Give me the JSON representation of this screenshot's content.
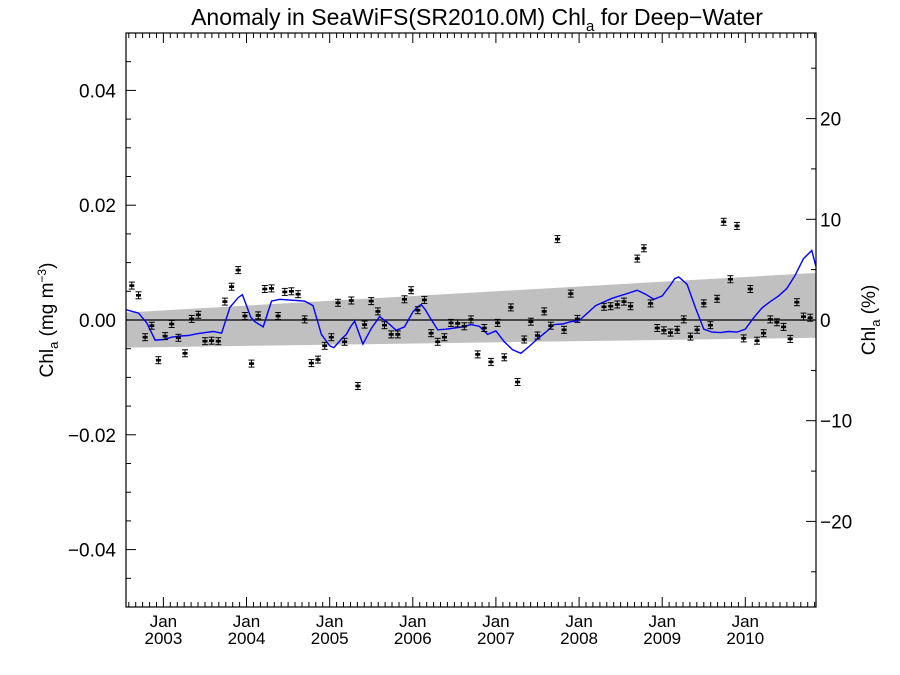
{
  "chart_data": {
    "type": "scatter",
    "title": {
      "main": "Anomaly in SeaWiFS(SR2010.0M) Chl",
      "sub": "a",
      "tail": " for Deep−Water"
    },
    "ylabel_left": {
      "main": "Chl",
      "sub": "a",
      "mid": " (mg m",
      "sup": "−3",
      "end": ")"
    },
    "ylabel_right": {
      "main": "Chl",
      "sub": "a",
      "end": " (%)"
    },
    "xlim": [
      2002.55,
      2010.85
    ],
    "ylim": [
      -0.05,
      0.05
    ],
    "ylim_right": [
      -28.5,
      28.5
    ],
    "y_ticks": [
      {
        "value": 0.04,
        "label": "0.04"
      },
      {
        "value": 0.02,
        "label": "0.02"
      },
      {
        "value": 0.0,
        "label": "0.00"
      },
      {
        "value": -0.02,
        "label": "−0.02"
      },
      {
        "value": -0.04,
        "label": "−0.04"
      }
    ],
    "y2_ticks": [
      {
        "value": 20,
        "label": "20"
      },
      {
        "value": 10,
        "label": "10"
      },
      {
        "value": 0,
        "label": "0"
      },
      {
        "value": -10,
        "label": "−10"
      },
      {
        "value": -20,
        "label": "−20"
      }
    ],
    "x_ticks": [
      {
        "value": 2003.0,
        "month": "Jan",
        "year": "2003"
      },
      {
        "value": 2004.0,
        "month": "Jan",
        "year": "2004"
      },
      {
        "value": 2005.0,
        "month": "Jan",
        "year": "2005"
      },
      {
        "value": 2006.0,
        "month": "Jan",
        "year": "2006"
      },
      {
        "value": 2007.0,
        "month": "Jan",
        "year": "2007"
      },
      {
        "value": 2008.0,
        "month": "Jan",
        "year": "2008"
      },
      {
        "value": 2009.0,
        "month": "Jan",
        "year": "2009"
      },
      {
        "value": 2010.0,
        "month": "Jan",
        "year": "2010"
      }
    ],
    "trend_band": {
      "x": [
        2002.55,
        2010.85
      ],
      "lower": [
        -0.0048,
        -0.0031
      ],
      "upper": [
        0.0013,
        0.0082
      ]
    },
    "zero_line": 0.0,
    "points": {
      "x": [
        2002.62,
        2002.7,
        2002.78,
        2002.86,
        2002.94,
        2003.02,
        2003.1,
        2003.18,
        2003.26,
        2003.34,
        2003.42,
        2003.5,
        2003.58,
        2003.66,
        2003.74,
        2003.82,
        2003.9,
        2003.98,
        2004.06,
        2004.14,
        2004.22,
        2004.3,
        2004.38,
        2004.46,
        2004.54,
        2004.62,
        2004.7,
        2004.78,
        2004.86,
        2004.94,
        2005.02,
        2005.1,
        2005.18,
        2005.26,
        2005.34,
        2005.42,
        2005.5,
        2005.58,
        2005.66,
        2005.74,
        2005.82,
        2005.9,
        2005.98,
        2006.06,
        2006.14,
        2006.22,
        2006.3,
        2006.38,
        2006.46,
        2006.54,
        2006.62,
        2006.7,
        2006.78,
        2006.86,
        2006.94,
        2007.02,
        2007.1,
        2007.18,
        2007.26,
        2007.34,
        2007.42,
        2007.5,
        2007.58,
        2007.66,
        2007.74,
        2007.82,
        2007.9,
        2007.98,
        2008.3,
        2008.38,
        2008.46,
        2008.54,
        2008.62,
        2008.7,
        2008.78,
        2008.86,
        2008.94,
        2009.02,
        2009.1,
        2009.18,
        2009.26,
        2009.34,
        2009.42,
        2009.5,
        2009.58,
        2009.66,
        2009.74,
        2009.82,
        2009.9,
        2009.98,
        2010.06,
        2010.14,
        2010.22,
        2010.3,
        2010.38,
        2010.46,
        2010.54,
        2010.62,
        2010.7,
        2010.78
      ],
      "y": [
        0.006,
        0.0043,
        -0.003,
        -0.001,
        -0.007,
        -0.0028,
        -0.0007,
        -0.0031,
        -0.0058,
        0.0002,
        0.0009,
        -0.0037,
        -0.0036,
        -0.0037,
        0.0032,
        0.0058,
        0.0087,
        0.0007,
        -0.0076,
        0.0008,
        0.0054,
        0.0055,
        0.0007,
        0.0049,
        0.005,
        0.0045,
        0.0001,
        -0.0075,
        -0.0069,
        -0.0045,
        -0.003,
        0.003,
        -0.0038,
        0.0034,
        -0.0115,
        -0.0008,
        0.0033,
        0.0015,
        -0.0009,
        -0.0025,
        -0.0025,
        0.0036,
        0.0052,
        0.0017,
        0.0035,
        -0.0023,
        -0.0038,
        -0.003,
        -0.0005,
        -0.0006,
        -0.0011,
        0.0001,
        -0.006,
        -0.0014,
        -0.0073,
        -0.0005,
        -0.0065,
        0.0022,
        -0.0108,
        -0.0034,
        -0.0003,
        -0.0027,
        0.0015,
        -0.001,
        0.0141,
        -0.0017,
        0.0046,
        0.0002,
        0.0023,
        0.0024,
        0.0027,
        0.0032,
        0.0024,
        0.0107,
        0.0125,
        0.0029,
        -0.0014,
        -0.0018,
        -0.0022,
        -0.0017,
        0.0001,
        -0.0029,
        -0.0017,
        0.0029,
        -0.0009,
        0.0037,
        0.0171,
        0.0071,
        0.0164,
        -0.0032,
        0.0054,
        -0.0036,
        -0.0023,
        0.0001,
        -0.0004,
        -0.0012,
        -0.0033,
        0.0031,
        0.0006,
        0.0004
      ]
    },
    "smoothed_line": {
      "x": [
        2002.55,
        2002.7,
        2002.8,
        2002.9,
        2003.0,
        2003.1,
        2003.2,
        2003.3,
        2003.4,
        2003.5,
        2003.6,
        2003.7,
        2003.8,
        2003.9,
        2003.95,
        2004.0,
        2004.05,
        2004.1,
        2004.2,
        2004.3,
        2004.4,
        2004.5,
        2004.6,
        2004.7,
        2004.8,
        2004.9,
        2005.0,
        2005.05,
        2005.1,
        2005.15,
        2005.2,
        2005.25,
        2005.3,
        2005.4,
        2005.5,
        2005.6,
        2005.7,
        2005.8,
        2005.9,
        2006.0,
        2006.05,
        2006.1,
        2006.15,
        2006.2,
        2006.3,
        2006.4,
        2006.5,
        2006.6,
        2006.7,
        2006.8,
        2006.9,
        2007.0,
        2007.1,
        2007.2,
        2007.3,
        2007.4,
        2007.5,
        2007.6,
        2007.7,
        2007.8,
        2007.9,
        2008.0,
        2008.2,
        2008.4,
        2008.6,
        2008.7,
        2008.8,
        2008.9,
        2009.0,
        2009.1,
        2009.15,
        2009.2,
        2009.3,
        2009.4,
        2009.5,
        2009.6,
        2009.7,
        2009.8,
        2009.9,
        2010.0,
        2010.1,
        2010.2,
        2010.3,
        2010.4,
        2010.5,
        2010.6,
        2010.7,
        2010.8,
        2010.85
      ],
      "y": [
        0.0018,
        0.0012,
        -0.0005,
        -0.0035,
        -0.0034,
        -0.003,
        -0.0028,
        -0.0027,
        -0.0024,
        -0.0022,
        -0.002,
        -0.0023,
        0.0022,
        0.0039,
        0.0044,
        0.0025,
        0.0005,
        -0.0003,
        -0.0012,
        0.0033,
        0.0036,
        0.0035,
        0.0034,
        0.0033,
        0.0025,
        -0.0025,
        -0.0045,
        -0.0048,
        -0.004,
        -0.0032,
        -0.0025,
        -0.0012,
        -0.0002,
        -0.0042,
        -0.0015,
        0.0006,
        -0.0005,
        -0.0018,
        -0.0012,
        0.0014,
        0.0022,
        0.0027,
        0.0018,
        0.0006,
        -0.0017,
        -0.0016,
        -0.0014,
        -0.0012,
        -0.0008,
        -0.0011,
        -0.0025,
        -0.0019,
        -0.0038,
        -0.0052,
        -0.0058,
        -0.0046,
        -0.0033,
        -0.0021,
        -0.0008,
        -0.0007,
        -0.0003,
        -0.0001,
        0.0025,
        0.0038,
        0.0047,
        0.0052,
        0.0045,
        0.0036,
        0.0042,
        0.0061,
        0.0072,
        0.0075,
        0.0062,
        0.0021,
        -0.0016,
        -0.0021,
        -0.0022,
        -0.002,
        -0.0021,
        -0.0016,
        0.0004,
        0.0021,
        0.0032,
        0.0042,
        0.0055,
        0.0078,
        0.0107,
        0.0121,
        0.0093
      ]
    },
    "colors": {
      "line": "#0000ff",
      "band": "#c0c0c0",
      "points": "#000000",
      "axes": "#000000"
    },
    "grid": false,
    "legend": "none"
  }
}
